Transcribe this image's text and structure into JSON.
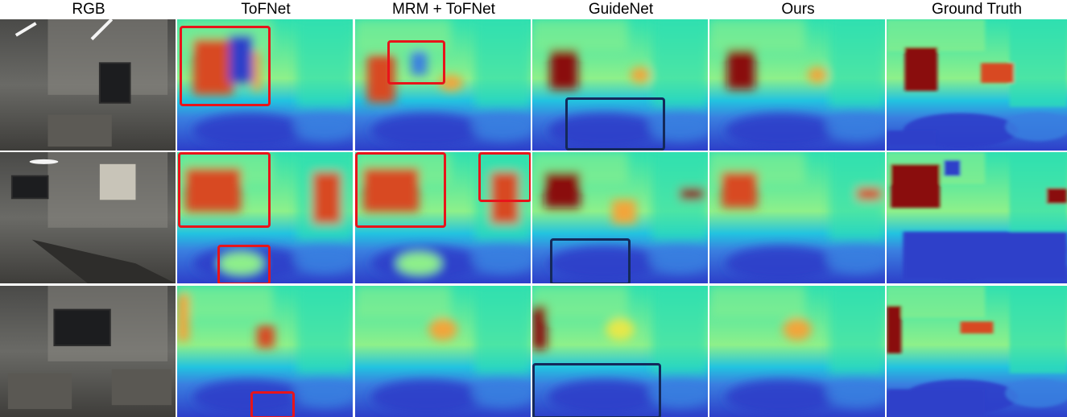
{
  "columns": [
    "RGB",
    "ToFNet",
    "MRM + ToFNet",
    "GuideNet",
    "Ours",
    "Ground Truth"
  ],
  "rows": 3,
  "colors": {
    "highlight_red": "#e8141a",
    "highlight_dark": "#14295a",
    "depth_colormap": [
      "#2d3fc9",
      "#3a7fe0",
      "#22c3e0",
      "#2fe0b0",
      "#8ef08a",
      "#e6e84a",
      "#f2a53a",
      "#d84a24",
      "#8a1010"
    ]
  }
}
